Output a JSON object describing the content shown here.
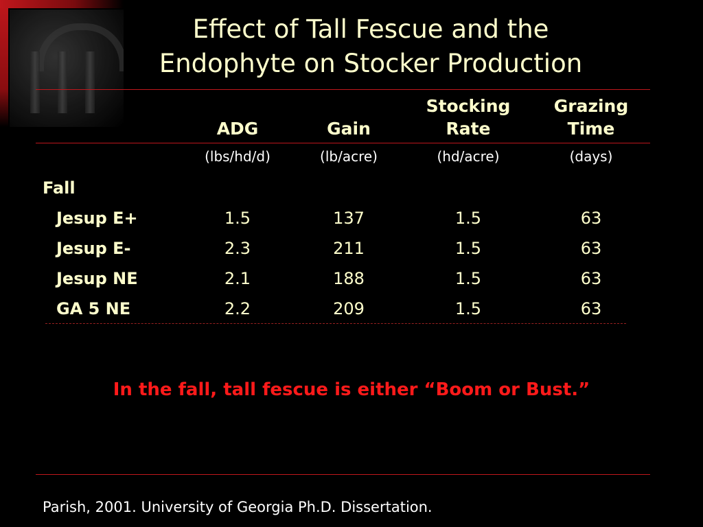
{
  "title": {
    "line1": "Effect of Tall Fescue and the",
    "line2": "Endophyte on Stocker Production"
  },
  "table": {
    "columns": [
      {
        "head_line1": "",
        "head_line2": "ADG",
        "unit": "(lbs/hd/d)"
      },
      {
        "head_line1": "",
        "head_line2": "Gain",
        "unit": "(lb/acre)"
      },
      {
        "head_line1": "Stocking",
        "head_line2": "Rate",
        "unit": "(hd/acre)"
      },
      {
        "head_line1": "Grazing",
        "head_line2": "Time",
        "unit": "(days)"
      }
    ],
    "section_label": "Fall",
    "rows": [
      {
        "label": "Jesup E+",
        "values": [
          "1.5",
          "137",
          "1.5",
          "63"
        ]
      },
      {
        "label": "Jesup E-",
        "values": [
          "2.3",
          "211",
          "1.5",
          "63"
        ]
      },
      {
        "label": "Jesup NE",
        "values": [
          "2.1",
          "188",
          "1.5",
          "63"
        ]
      },
      {
        "label": "GA 5 NE",
        "values": [
          "2.2",
          "209",
          "1.5",
          "63"
        ]
      }
    ]
  },
  "callout": "In the fall, tall fescue is either “Boom or Bust.”",
  "citation": "Parish, 2001. University of Georgia Ph.D. Dissertation.",
  "colors": {
    "background": "#000000",
    "title_text": "#ffffcc",
    "accent_red": "#c0171c",
    "callout_red": "#ff1a1a"
  }
}
